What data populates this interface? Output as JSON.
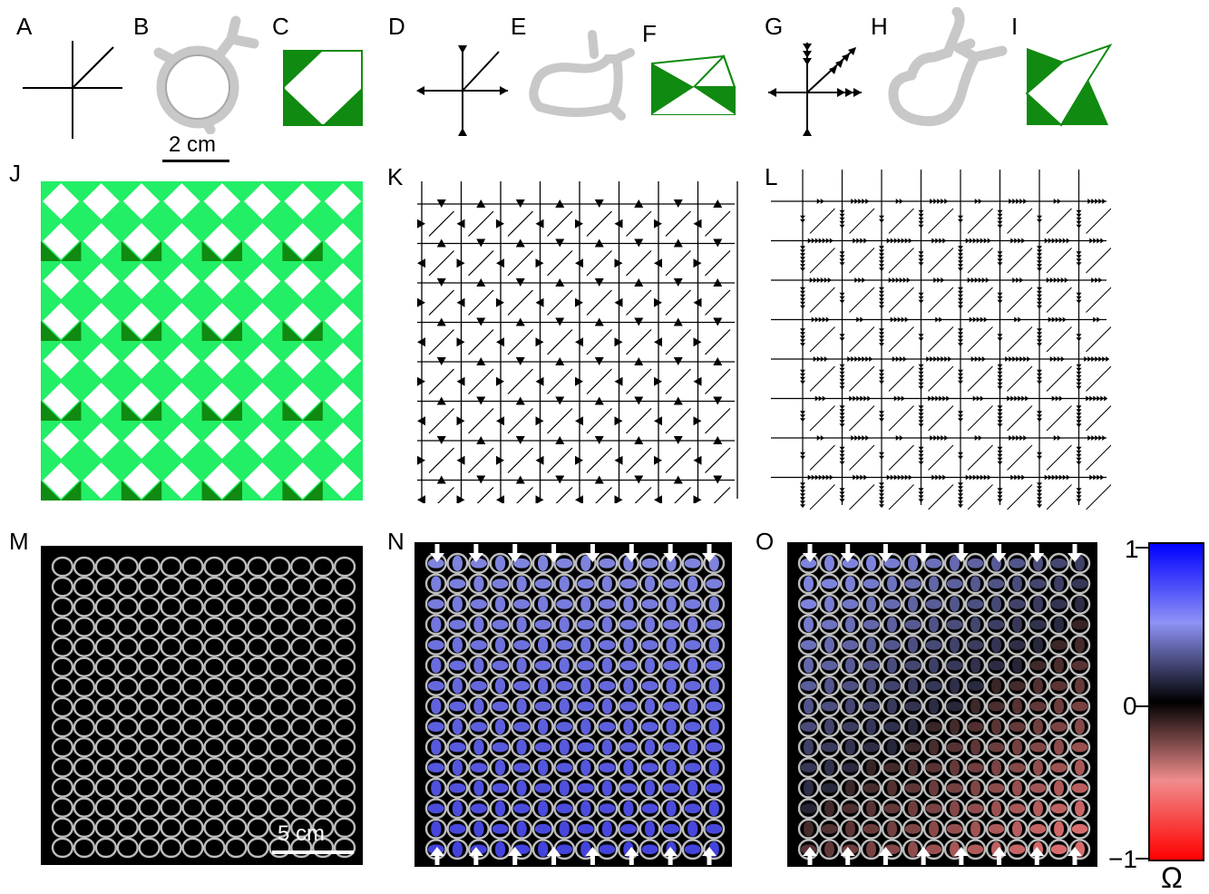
{
  "labels": {
    "A": "A",
    "B": "B",
    "C": "C",
    "D": "D",
    "E": "E",
    "F": "F",
    "G": "G",
    "H": "H",
    "I": "I",
    "J": "J",
    "K": "K",
    "L": "L",
    "M": "M",
    "N": "N",
    "O": "O"
  },
  "scalebars": {
    "top": "2 cm",
    "bottom": "5 cm"
  },
  "colorbar": {
    "max_label": "1",
    "mid_label": "0",
    "min_label": "−1",
    "symbol": "Ω",
    "colors": {
      "top": "#0000ff",
      "upper": "#8e92f5",
      "mid": "#000000",
      "lower": "#f08c8c",
      "bottom": "#ff0000"
    }
  },
  "colors": {
    "green_dark": "#108a10",
    "green_light": "#22ee66",
    "ink": "#000000"
  }
}
